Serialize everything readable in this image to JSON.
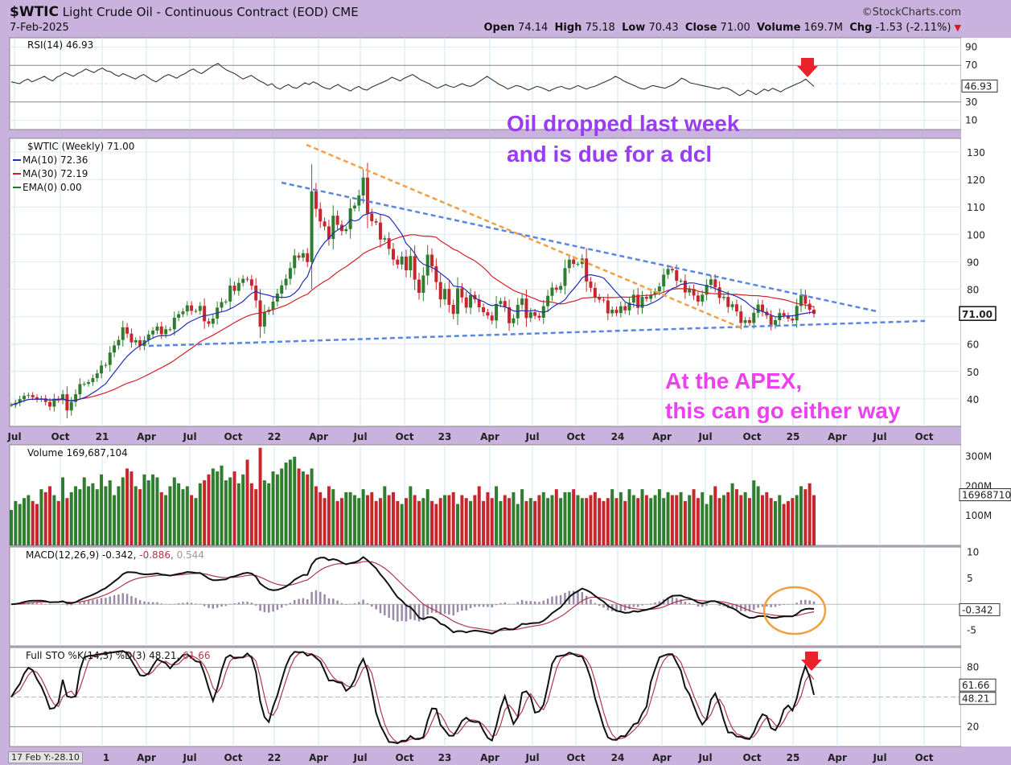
{
  "header": {
    "symbol": "$WTIC",
    "name": "Light Crude Oil - Continuous Contract (EOD)",
    "exchange": "CME",
    "date": "7-Feb-2025",
    "source": "©StockCharts.com",
    "quote": {
      "open_label": "Open",
      "open": "74.14",
      "high_label": "High",
      "high": "75.18",
      "low_label": "Low",
      "low": "70.43",
      "close_label": "Close",
      "close": "71.00",
      "volume_label": "Volume",
      "volume": "169.7M",
      "chg_label": "Chg",
      "chg": "-1.53 (-2.11%)"
    }
  },
  "chart_data": [
    {
      "panel": "rsi",
      "type": "line",
      "title": "RSI(14) 46.93",
      "last_value": "46.93",
      "ylim": [
        0,
        100
      ],
      "tick_labels": [
        "90",
        "70",
        "30",
        "10"
      ],
      "values": [
        52,
        51,
        50,
        53,
        55,
        52,
        54,
        56,
        58,
        55,
        53,
        57,
        59,
        62,
        60,
        58,
        61,
        63,
        66,
        64,
        62,
        65,
        67,
        64,
        63,
        60,
        58,
        61,
        59,
        57,
        55,
        58,
        60,
        57,
        54,
        52,
        55,
        58,
        60,
        58,
        56,
        59,
        61,
        64,
        66,
        63,
        61,
        64,
        67,
        70,
        72,
        68,
        65,
        63,
        61,
        58,
        55,
        57,
        59,
        56,
        53,
        51,
        48,
        50,
        46,
        44,
        47,
        49,
        46,
        45,
        48,
        51,
        49,
        52,
        50,
        47,
        45,
        44,
        47,
        49,
        46,
        44,
        42,
        45,
        47,
        44,
        43,
        46,
        48,
        50,
        52,
        54,
        57,
        55,
        53,
        56,
        58,
        60,
        57,
        54,
        52,
        50,
        47,
        45,
        47,
        49,
        47,
        46,
        48,
        50,
        48,
        47,
        49,
        52,
        55,
        58,
        55,
        52,
        49,
        47,
        44,
        46,
        48,
        47,
        45,
        43,
        45,
        47,
        46,
        44,
        42,
        44,
        46,
        47,
        45,
        44,
        46,
        48,
        46,
        44,
        46,
        47,
        49,
        51,
        53,
        55,
        58,
        56,
        53,
        51,
        49,
        47,
        45,
        44,
        46,
        48,
        47,
        46,
        45,
        47,
        49,
        52,
        56,
        54,
        51,
        50,
        49,
        48,
        47,
        46,
        45,
        44,
        46,
        45,
        43,
        40,
        37,
        39,
        43,
        41,
        38,
        41,
        44,
        42,
        45,
        43,
        41,
        44,
        46,
        48,
        50,
        52,
        55,
        51,
        47
      ]
    },
    {
      "panel": "price",
      "type": "line",
      "title": "$WTIC (Weekly) 71.00",
      "ylim": [
        30,
        135
      ],
      "y_tick_labels": [
        "130",
        "120",
        "110",
        "100",
        "90",
        "80",
        "60",
        "50",
        "40"
      ],
      "last_price": "71.00",
      "x_tick_labels": [
        "Jul",
        "Oct",
        "21",
        "Apr",
        "Jul",
        "Oct",
        "22",
        "Apr",
        "Jul",
        "Oct",
        "23",
        "Apr",
        "Jul",
        "Oct",
        "24",
        "Apr",
        "Jul",
        "Oct",
        "25",
        "Apr",
        "Jul",
        "Oct"
      ],
      "legend": [
        {
          "name": "MA(10) 72.36",
          "color": "#1f2fb5"
        },
        {
          "name": "MA(30) 72.19",
          "color": "#d0202a"
        },
        {
          "name": "EMA(0) 0.00",
          "color": "#1f7a1f"
        }
      ],
      "close": [
        37.8,
        38.6,
        39.9,
        41.1,
        41.4,
        40.6,
        39.8,
        40.2,
        38.9,
        37.2,
        40.1,
        39.6,
        41.7,
        35.8,
        38.9,
        41.7,
        45.4,
        45.5,
        46.1,
        47.6,
        49.3,
        52.2,
        52.4,
        56.9,
        59.5,
        61.5,
        66.1,
        63.8,
        60.6,
        61.4,
        59.3,
        61.4,
        63.5,
        64.9,
        66.4,
        63.6,
        65.4,
        65.4,
        69.6,
        70.9,
        71.9,
        74.1,
        72.1,
        72.1,
        73.9,
        68.3,
        67.4,
        69.3,
        73.3,
        75.3,
        75.5,
        81.3,
        79.4,
        82.3,
        83.8,
        83.6,
        81.3,
        75.9,
        66.4,
        71.7,
        72.5,
        75.5,
        78.4,
        81.4,
        83.8,
        87.7,
        92.3,
        91.5,
        93.1,
        89.9,
        115.7,
        109.3,
        104.7,
        102.9,
        98.3,
        106.8,
        103.5,
        101.2,
        101.9,
        109.5,
        110.5,
        114.2,
        120.7,
        107.6,
        104.8,
        104.3,
        98.1,
        98.6,
        94.7,
        90.8,
        89.0,
        91.9,
        86.9,
        92.1,
        83.5,
        78.7,
        85.0,
        92.6,
        88.4,
        82.6,
        76.3,
        80.1,
        74.3,
        71.0,
        80.3,
        77.0,
        73.3,
        77.9,
        76.3,
        73.4,
        71.6,
        70.4,
        68.6,
        74.6,
        75.7,
        73.4,
        67.6,
        69.4,
        74.3,
        76.6,
        69.5,
        71.6,
        70.3,
        69.6,
        73.8,
        77.6,
        80.6,
        79.8,
        81.2,
        87.7,
        90.8,
        89.2,
        89.2,
        91.2,
        82.8,
        80.5,
        77.2,
        76.2,
        75.9,
        71.2,
        72.5,
        71.3,
        73.8,
        72.3,
        75.1,
        78.0,
        73.2,
        77.2,
        76.5,
        78.0,
        79.2,
        81.0,
        85.3,
        87.4,
        86.9,
        83.1,
        83.1,
        78.8,
        80.1,
        77.7,
        75.5,
        78.0,
        81.6,
        83.6,
        80.7,
        76.8,
        77.2,
        73.5,
        74.5,
        71.9,
        67.7,
        68.7,
        67.7,
        71.4,
        74.4,
        71.8,
        70.4,
        67.0,
        68.7,
        71.3,
        70.4,
        69.3,
        68.6,
        73.9,
        77.9,
        74.7,
        72.5,
        71.0
      ],
      "high": [],
      "low": [],
      "ma10_value": "72.36",
      "ma30_value": "72.19"
    },
    {
      "panel": "volume",
      "type": "bar",
      "title": "Volume 169,687,104",
      "last_value": "169687104",
      "y_tick_labels": [
        "300M",
        "200M",
        "100M"
      ],
      "values_millions": [
        120,
        150,
        140,
        160,
        170,
        150,
        140,
        190,
        180,
        200,
        170,
        150,
        230,
        160,
        180,
        200,
        190,
        230,
        200,
        210,
        190,
        240,
        200,
        220,
        170,
        200,
        230,
        260,
        250,
        200,
        190,
        240,
        220,
        240,
        230,
        180,
        170,
        200,
        230,
        210,
        190,
        200,
        170,
        160,
        210,
        220,
        240,
        260,
        220,
        250,
        270,
        220,
        230,
        250,
        210,
        240,
        290,
        210,
        190,
        330,
        220,
        210,
        250,
        240,
        260,
        280,
        290,
        300,
        260,
        250,
        240,
        260,
        200,
        180,
        160,
        200,
        190,
        150,
        160,
        180,
        180,
        170,
        160,
        190,
        170,
        180,
        150,
        160,
        200,
        170,
        180,
        150,
        140,
        160,
        200,
        170,
        150,
        160,
        190,
        150,
        140,
        160,
        170,
        170,
        180,
        140,
        170,
        160,
        150,
        170,
        200,
        150,
        180,
        160,
        200,
        150,
        170,
        160,
        180,
        140,
        190,
        150,
        160,
        150,
        170,
        180,
        160,
        170,
        190,
        160,
        180,
        180,
        190,
        170,
        160,
        160,
        170,
        180,
        160,
        150,
        160,
        190,
        170,
        160,
        180,
        150,
        190,
        170,
        160,
        190,
        170,
        160,
        170,
        190,
        160,
        180,
        170,
        170,
        180,
        150,
        170,
        190,
        160,
        180,
        140,
        170,
        200,
        160,
        170,
        180,
        210,
        190,
        170,
        180,
        160,
        220,
        200,
        170,
        180,
        160,
        150,
        170,
        140,
        150,
        160,
        170,
        200,
        190,
        210,
        170
      ],
      "up": []
    },
    {
      "panel": "macd",
      "type": "line",
      "title": "MACD(12,26,9)",
      "macd": "-0.342",
      "signal": "-0.886",
      "histogram": "0.544",
      "last_value": "-0.342",
      "y_tick_labels": [
        "10",
        "5",
        "-5"
      ]
    },
    {
      "panel": "sto",
      "type": "line",
      "title": "Full STO %K(14,3) %D(3)",
      "k": "48.21",
      "d": "61.66",
      "y_tick_labels": [
        "80",
        "20"
      ],
      "last_k_label": "48.21",
      "last_d_label": "61.66"
    }
  ],
  "annotations": {
    "note1_line1": "Oil dropped last week",
    "note1_line2": "and is due for a dcl",
    "note2_line1": "At the APEX,",
    "note2_line2": "this can go either way"
  },
  "footer": {
    "cursor_tag": "17 Feb Y:-28.10",
    "x_tick_labels": [
      "1",
      "Apr",
      "Jul",
      "Oct",
      "22",
      "Apr",
      "Jul",
      "Oct",
      "23",
      "Apr",
      "Jul",
      "Oct",
      "24",
      "Apr",
      "Jul",
      "Oct",
      "25",
      "Apr",
      "Jul",
      "Oct"
    ]
  },
  "colors": {
    "background": "#c9b2de",
    "panel": "#ffffff",
    "up": "#2f7d2f",
    "down": "#c8262d",
    "ma10": "#1f2fb5",
    "ma30": "#d0202a",
    "trend_blue": "#5a86e0",
    "trend_orange": "#f2a043",
    "annotation_purple": "#9a3cf2",
    "annotation_pink": "#ee3ff0",
    "arrow": "#e8232a",
    "circle": "#f0a040"
  }
}
